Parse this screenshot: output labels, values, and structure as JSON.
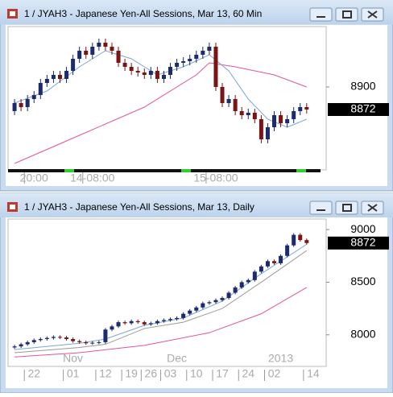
{
  "windows": [
    {
      "title": "1 / JYAH3 - Japanese Yen-All Sessions, Mar 13, 60 Min",
      "chart": {
        "type": "candlestick",
        "ylim": [
          8798,
          8975
        ],
        "yticks": [
          8900
        ],
        "xlim": [
          -1,
          48
        ],
        "xticks": [
          {
            "value": 3,
            "label": "20:00"
          },
          {
            "value": 12,
            "label": "14-08:00"
          },
          {
            "value": 31,
            "label": "15-08:00"
          }
        ],
        "up_color": "#1c2a6e",
        "down_color": "#7a1414",
        "open": [
          8870,
          8880,
          8875,
          8885,
          8890,
          8905,
          8910,
          8915,
          8910,
          8920,
          8935,
          8945,
          8940,
          8950,
          8955,
          8950,
          8945,
          8930,
          8925,
          8920,
          8918,
          8915,
          8920,
          8910,
          8915,
          8925,
          8930,
          8932,
          8935,
          8940,
          8945,
          8950,
          8900,
          8880,
          8885,
          8870,
          8865,
          8868,
          8860,
          8835,
          8850,
          8865,
          8855,
          8860,
          8870,
          8875
        ],
        "high": [
          8885,
          8885,
          8890,
          8895,
          8910,
          8915,
          8920,
          8920,
          8925,
          8940,
          8950,
          8950,
          8955,
          8960,
          8960,
          8955,
          8950,
          8935,
          8930,
          8925,
          8923,
          8925,
          8925,
          8920,
          8930,
          8935,
          8937,
          8940,
          8945,
          8950,
          8955,
          8955,
          8905,
          8890,
          8890,
          8875,
          8873,
          8873,
          8865,
          8855,
          8870,
          8870,
          8865,
          8875,
          8880,
          8880
        ],
        "low": [
          8865,
          8870,
          8870,
          8880,
          8885,
          8900,
          8905,
          8905,
          8905,
          8915,
          8930,
          8935,
          8935,
          8945,
          8945,
          8940,
          8925,
          8920,
          8915,
          8913,
          8910,
          8910,
          8905,
          8905,
          8910,
          8920,
          8925,
          8927,
          8930,
          8935,
          8940,
          8895,
          8875,
          8875,
          8865,
          8860,
          8860,
          8855,
          8830,
          8830,
          8845,
          8850,
          8850,
          8855,
          8865,
          8867
        ],
        "close": [
          8880,
          8875,
          8885,
          8890,
          8905,
          8910,
          8915,
          8910,
          8920,
          8935,
          8945,
          8940,
          8950,
          8955,
          8950,
          8945,
          8930,
          8925,
          8920,
          8918,
          8915,
          8920,
          8910,
          8915,
          8925,
          8930,
          8932,
          8935,
          8940,
          8945,
          8950,
          8900,
          8880,
          8885,
          8870,
          8865,
          8868,
          8860,
          8835,
          8850,
          8865,
          8855,
          8860,
          8870,
          8875,
          8872
        ],
        "last_price": 8872,
        "lines": [
          {
            "color": "#e0559a",
            "x": [
              0,
              10,
              20,
              28,
              30,
              34,
              40,
              45
            ],
            "values": [
              8805,
              8840,
              8875,
              8915,
              8930,
              8925,
              8915,
              8900
            ]
          },
          {
            "color": "#7aa6d8",
            "x": [
              0,
              5,
              10,
              14,
              18,
              22,
              26,
              30,
              33,
              36,
              39,
              42,
              45
            ],
            "values": [
              8880,
              8895,
              8925,
              8945,
              8935,
              8915,
              8925,
              8940,
              8920,
              8885,
              8860,
              8850,
              8860
            ]
          }
        ]
      }
    },
    {
      "title": "1 / JYAH3 - Japanese Yen-All Sessions, Mar 13, Daily",
      "chart": {
        "type": "candlestick",
        "ylim": [
          7700,
          9100
        ],
        "yticks": [
          8000,
          8500,
          9000
        ],
        "xlim": [
          -1,
          48
        ],
        "xticks": [
          {
            "value": 3,
            "label": "22"
          },
          {
            "value": 9,
            "label": "01"
          },
          {
            "value": 14,
            "label": "12"
          },
          {
            "value": 18,
            "label": "19"
          },
          {
            "value": 21,
            "label": "26"
          },
          {
            "value": 24,
            "label": "03"
          },
          {
            "value": 28,
            "label": "10"
          },
          {
            "value": 32,
            "label": "17"
          },
          {
            "value": 36,
            "label": "24"
          },
          {
            "value": 40,
            "label": "02"
          },
          {
            "value": 46,
            "label": "14"
          }
        ],
        "month_ticks": [
          {
            "value": 9,
            "label": "Nov"
          },
          {
            "value": 25,
            "label": "Dec"
          },
          {
            "value": 41,
            "label": "2013"
          }
        ],
        "up_color": "#1c2a6e",
        "down_color": "#7a1414",
        "open": [
          7880,
          7890,
          7910,
          7930,
          7950,
          7960,
          7970,
          7980,
          7975,
          7960,
          7940,
          7930,
          7920,
          7925,
          7930,
          8050,
          8080,
          8120,
          8110,
          8130,
          8120,
          8100,
          8110,
          8130,
          8140,
          8150,
          8160,
          8200,
          8230,
          8260,
          8300,
          8310,
          8330,
          8350,
          8400,
          8450,
          8500,
          8520,
          8600,
          8650,
          8700,
          8680,
          8750,
          8850,
          8950,
          8900
        ],
        "high": [
          7905,
          7925,
          7945,
          7965,
          7975,
          7985,
          7995,
          7995,
          7990,
          7975,
          7955,
          7945,
          7940,
          7945,
          8065,
          8095,
          8135,
          8135,
          8145,
          8145,
          8135,
          8125,
          8145,
          8155,
          8165,
          8175,
          8215,
          8245,
          8275,
          8315,
          8325,
          8345,
          8365,
          8415,
          8465,
          8515,
          8535,
          8615,
          8665,
          8715,
          8715,
          8765,
          8865,
          8965,
          8965,
          8915
        ],
        "low": [
          7865,
          7875,
          7895,
          7915,
          7935,
          7945,
          7955,
          7960,
          7945,
          7925,
          7915,
          7905,
          7905,
          7910,
          7915,
          8035,
          8065,
          8095,
          8095,
          8105,
          8085,
          8085,
          8095,
          8115,
          8125,
          8135,
          8145,
          8185,
          8215,
          8245,
          8285,
          8295,
          8315,
          8335,
          8385,
          8435,
          8485,
          8505,
          8585,
          8635,
          8665,
          8665,
          8735,
          8835,
          8885,
          8857
        ],
        "close": [
          7890,
          7910,
          7930,
          7950,
          7960,
          7970,
          7980,
          7975,
          7960,
          7940,
          7930,
          7920,
          7925,
          7930,
          8050,
          8080,
          8120,
          8110,
          8130,
          8120,
          8100,
          8110,
          8130,
          8140,
          8150,
          8160,
          8200,
          8230,
          8260,
          8300,
          8310,
          8330,
          8350,
          8400,
          8450,
          8500,
          8520,
          8600,
          8650,
          8700,
          8680,
          8750,
          8850,
          8950,
          8900,
          8872
        ],
        "last_price": 8872,
        "lines": [
          {
            "color": "#e0559a",
            "x": [
              0,
              10,
              20,
              30,
              38,
              45
            ],
            "values": [
              7790,
              7830,
              7900,
              8020,
              8200,
              8450
            ]
          },
          {
            "color": "#9a9a9a",
            "x": [
              0,
              10,
              14,
              20,
              26,
              32,
              38,
              45
            ],
            "values": [
              7830,
              7880,
              7910,
              8060,
              8120,
              8250,
              8500,
              8800
            ]
          },
          {
            "color": "#7aa6d8",
            "x": [
              0,
              10,
              14,
              20,
              26,
              32,
              38,
              45
            ],
            "values": [
              7860,
              7920,
              7960,
              8090,
              8160,
              8320,
              8580,
              8860
            ]
          }
        ]
      }
    }
  ]
}
